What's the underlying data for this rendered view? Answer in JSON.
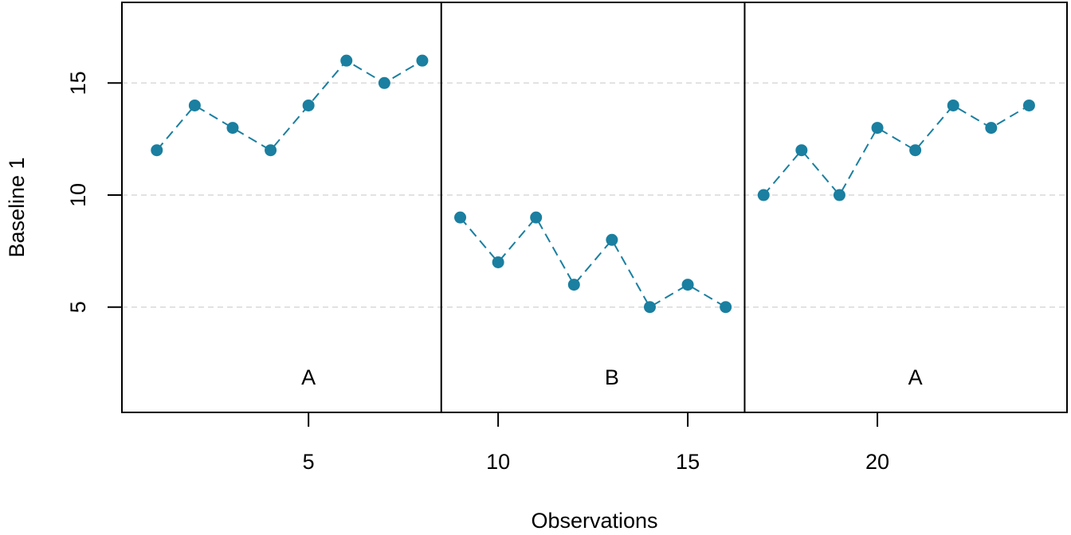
{
  "chart_data": {
    "type": "line",
    "title": "",
    "xlabel": "Observations",
    "ylabel": "Baseline 1",
    "xlim": [
      0.08,
      25.0
    ],
    "ylim": [
      0.3,
      18.6
    ],
    "x_ticks": [
      5,
      10,
      15,
      20
    ],
    "y_ticks": [
      5,
      10,
      15
    ],
    "gridlines_y": [
      5,
      10,
      15
    ],
    "grid": "horizontal dashed",
    "point_color": "#1a7fa0",
    "line_color": "#1a7fa0",
    "grid_color": "#d9d9d9",
    "phase_boundaries": [
      8.5,
      16.5
    ],
    "phases": [
      {
        "label": "A",
        "label_x": 5
      },
      {
        "label": "B",
        "label_x": 13
      },
      {
        "label": "A",
        "label_x": 21
      }
    ],
    "segments": [
      {
        "x": [
          1,
          2,
          3,
          4,
          5,
          6,
          7,
          8
        ],
        "y": [
          12,
          14,
          13,
          12,
          14,
          16,
          15,
          16
        ]
      },
      {
        "x": [
          9,
          10,
          11,
          12,
          13,
          14,
          15,
          16
        ],
        "y": [
          9,
          7,
          9,
          6,
          8,
          5,
          6,
          5
        ]
      },
      {
        "x": [
          17,
          18,
          19,
          20,
          21,
          22,
          23,
          24
        ],
        "y": [
          10,
          12,
          10,
          13,
          12,
          14,
          13,
          14
        ]
      }
    ]
  }
}
